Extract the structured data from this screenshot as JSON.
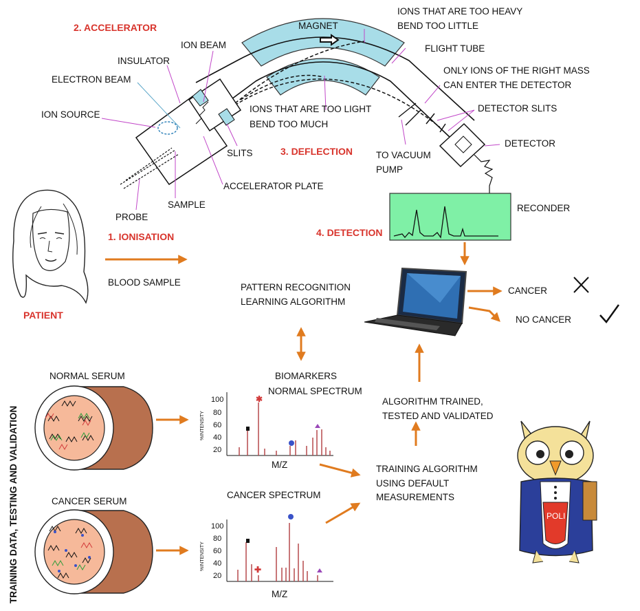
{
  "steps": {
    "accelerator": "2. ACCELERATOR",
    "ionisation": "1. IONISATION",
    "deflection": "3. DEFLECTION",
    "detection": "4. DETECTION"
  },
  "spectrometer": {
    "magnet": "MAGNET",
    "ion_beam": "ION BEAM",
    "insulator": "INSULATOR",
    "electron_beam": "ELECTRON BEAM",
    "ion_source": "ION SOURCE",
    "slits": "SLITS",
    "accelerator_plate": "ACCELERATOR PLATE",
    "sample": "SAMPLE",
    "probe": "PROBE",
    "heavy_line1": "IONS THAT ARE TOO HEAVY",
    "heavy_line2": "BEND TOO LITTLE",
    "flight_tube": "FLIGHT TUBE",
    "right_mass_line1": "ONLY IONS OF THE RIGHT MASS",
    "right_mass_line2": "CAN ENTER THE DETECTOR",
    "light_line1": "IONS THAT ARE TOO LIGHT",
    "light_line2": "BEND TOO MUCH",
    "detector_slits": "DETECTOR SLITS",
    "detector": "DETECTOR",
    "vacuum_line1": "TO VACUUM",
    "vacuum_line2": "PUMP",
    "recorder": "RECONDER"
  },
  "patient": {
    "label": "PATIENT",
    "blood_sample": "BLOOD SAMPLE"
  },
  "analysis": {
    "pattern_line1": "PATTERN  RECOGNITION",
    "pattern_line2": "LEARNING ALGORITHM",
    "cancer": "CANCER",
    "no_cancer": "NO CANCER",
    "biomarkers_line1": "BIOMARKERS",
    "biomarkers_line2": "NORMAL SPECTRUM",
    "trained_line1": "ALGORITHM TRAINED,",
    "trained_line2": "TESTED AND VALIDATED",
    "training_line1": "TRAINING ALGORITHM",
    "training_line2": "USING DEFAULT",
    "training_line3": "MEASUREMENTS",
    "cancer_spectrum": "CANCER SPECTRUM",
    "normal_serum": "NORMAL SERUM",
    "cancer_serum": "CANCER SERUM",
    "side_label": "TRAINING DATA, TESTING AND VALIDATION",
    "mascot_badge": "POLI"
  },
  "spectra": {
    "y_ticks": [
      "100",
      "80",
      "60",
      "40",
      "20"
    ],
    "y_label": "%INTENSITY",
    "x_label": "M/Z"
  },
  "colors": {
    "step_red": "#d8342c",
    "arrow_orange": "#e07b1f",
    "magnet_blue": "#a8dde8",
    "recorder_green": "#7ff0a6",
    "tissue_brown": "#b8704e",
    "serum_pink": "#f6b99a",
    "peak_red": "#b5484a"
  }
}
